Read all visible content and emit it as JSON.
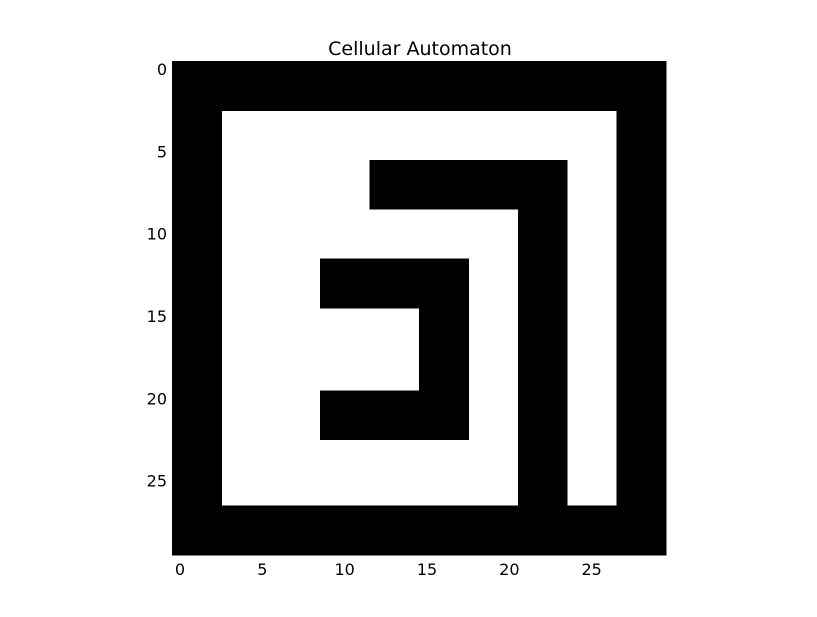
{
  "chart_data": {
    "type": "heatmap",
    "title": "Cellular Automaton",
    "xlabel": "",
    "ylabel": "",
    "grid": false,
    "colormap": {
      "1": "#000000",
      "0": "#ffffff"
    },
    "xlim": [
      0,
      29
    ],
    "ylim": [
      0,
      29
    ],
    "x_ticks": [
      "0",
      "5",
      "10",
      "15",
      "20",
      "25"
    ],
    "y_ticks": [
      "0",
      "5",
      "10",
      "15",
      "20",
      "25"
    ],
    "rows": [
      "111111111111111111111111111111",
      "111111111111111111111111111111",
      "111111111111111111111111111111",
      "111000000000000000000000000111",
      "111000000000000000000000000111",
      "111000000000000000000000000111",
      "111000000000111111111111000111",
      "111000000000111111111111000111",
      "111000000000111111111111000111",
      "111000000000000000000111000111",
      "111000000000000000000111000111",
      "111000000000000000000111000111",
      "111000000111111111000111000111",
      "111000000111111111000111000111",
      "111000000111111111000111000111",
      "111000000000000111000111000111",
      "111000000000000111000111000111",
      "111000000000000111000111000111",
      "111000000000000111000111000111",
      "111000000000000111000111000111",
      "111000000111111111000111000111",
      "111000000111111111000111000111",
      "111000000111111111000111000111",
      "111000000000000000000111000111",
      "111000000000000000000111000111",
      "111000000000000000000111000111",
      "111000000000000000000111000111",
      "111111111111111111111111111111",
      "111111111111111111111111111111",
      "111111111111111111111111111111"
    ]
  }
}
